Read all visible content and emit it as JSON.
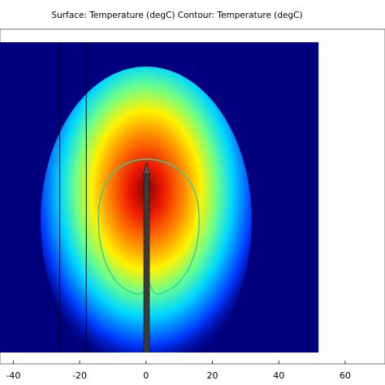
{
  "chart_data": {
    "type": "heatmap",
    "title": "Surface: Temperature (degC)  Contour: Temperature (degC)",
    "xlabel": "",
    "ylabel": "",
    "xlim": [
      -44,
      72
    ],
    "x_ticks": [
      -40,
      -20,
      0,
      20,
      40,
      60
    ],
    "domain_x_range": [
      -50,
      52
    ],
    "colormap": "rainbow",
    "surface_field": "Temperature (degC)",
    "contour_field": "Temperature (degC)",
    "hot_zone_center_x": 2,
    "boundary_lines_x": [
      -26,
      -18
    ],
    "probe_x": 2
  },
  "colors": {
    "background": "#00007f",
    "contour": "#2fd0a0",
    "probe": "#3a3a3a"
  }
}
